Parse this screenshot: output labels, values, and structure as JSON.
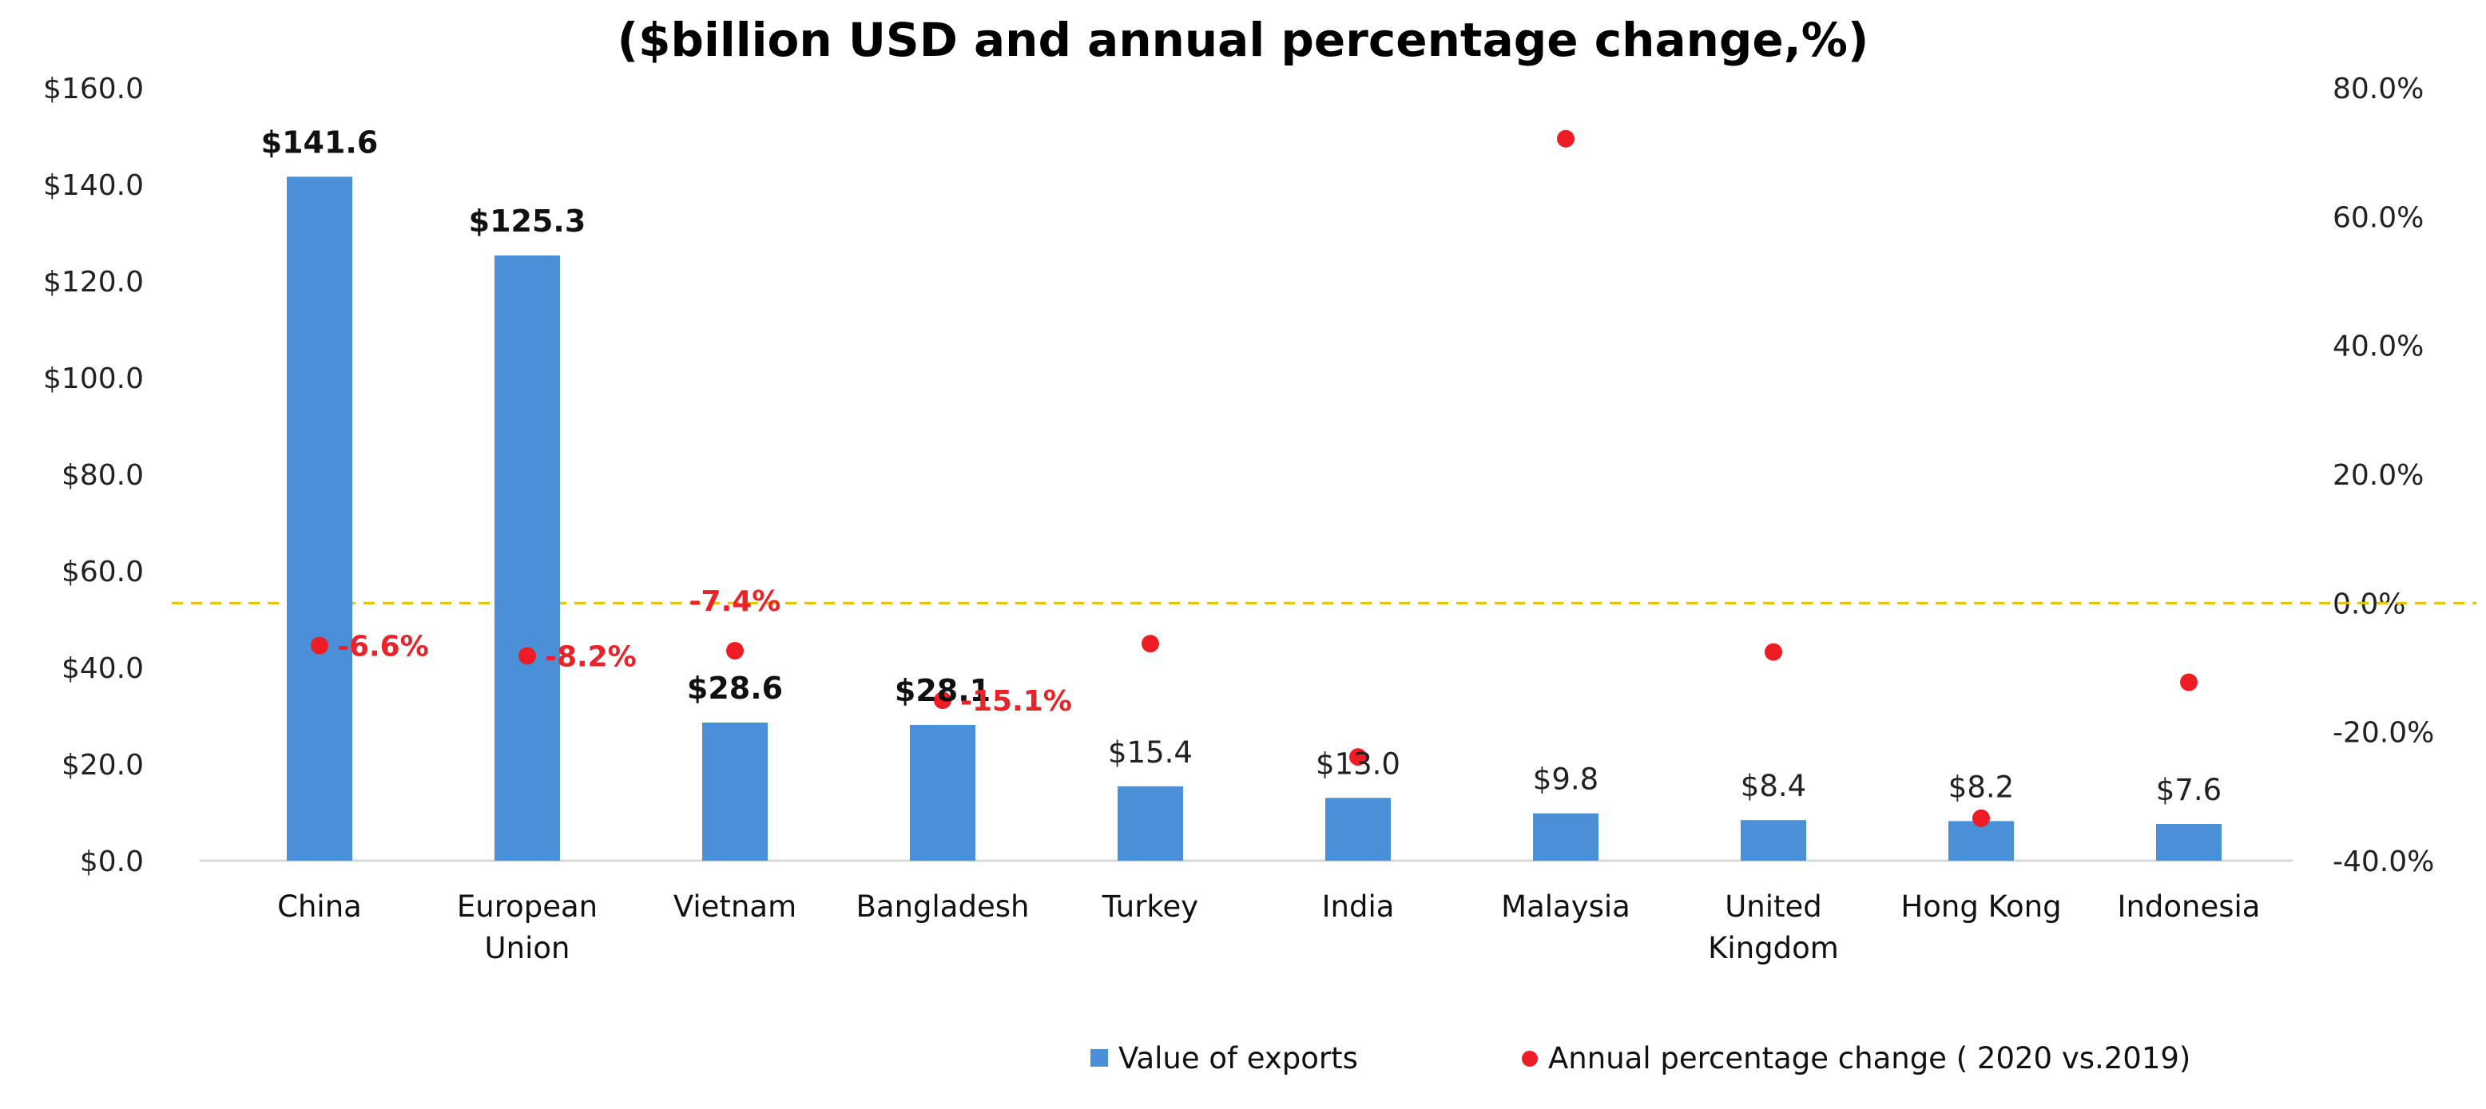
{
  "chart_data": {
    "type": "bar",
    "title": "($billion USD and annual percentage change,%)",
    "categories": [
      [
        "China"
      ],
      [
        "European",
        "Union"
      ],
      [
        "Vietnam"
      ],
      [
        "Bangladesh"
      ],
      [
        "Turkey"
      ],
      [
        "India"
      ],
      [
        "Malaysia"
      ],
      [
        "United",
        "Kingdom"
      ],
      [
        "Hong Kong"
      ],
      [
        "Indonesia"
      ]
    ],
    "series": [
      {
        "name": "Value of exports",
        "axis": "left",
        "color": "#4a90d9",
        "values": [
          141.6,
          125.3,
          28.6,
          28.1,
          15.4,
          13.0,
          9.8,
          8.4,
          8.2,
          7.6
        ],
        "data_labels": [
          "$141.6",
          "$125.3",
          "$28.6",
          "$28.1",
          "$15.4",
          "$13.0",
          "$9.8",
          "$8.4",
          "$8.2",
          "$7.6"
        ],
        "label_bold": [
          true,
          true,
          true,
          true,
          false,
          false,
          false,
          false,
          false,
          false
        ]
      },
      {
        "name": "Annual percentage change (2020 vs.2019)",
        "axis": "right",
        "color": "#ee1c25",
        "values": [
          -6.6,
          -8.2,
          -7.4,
          -15.1,
          -6.3,
          -23.9,
          72.1,
          -7.6,
          -33.4,
          -12.3
        ],
        "data_labels": [
          "-6.6%",
          "-8.2%",
          "-7.4%",
          "-15.1%",
          "",
          "",
          "",
          "",
          "",
          ""
        ]
      }
    ],
    "y_left": {
      "min": 0,
      "max": 160,
      "step": 20,
      "tick_labels": [
        "$0.0",
        "$20.0",
        "$40.0",
        "$60.0",
        "$80.0",
        "$100.0",
        "$120.0",
        "$140.0",
        "$160.0"
      ]
    },
    "y_right": {
      "min": -40,
      "max": 80,
      "step": 20,
      "tick_labels": [
        "-40.0%",
        "-20.0%",
        "0.0%",
        "20.0%",
        "40.0%",
        "60.0%",
        "80.0%"
      ]
    },
    "zero_line": {
      "axis": "right",
      "value": 0,
      "color": "#e6c300",
      "style": "dashed"
    },
    "legend": {
      "position": "bottom-right",
      "items": [
        "Value of exports",
        "Annual percentage change ( 2020 vs.2019)"
      ]
    }
  }
}
